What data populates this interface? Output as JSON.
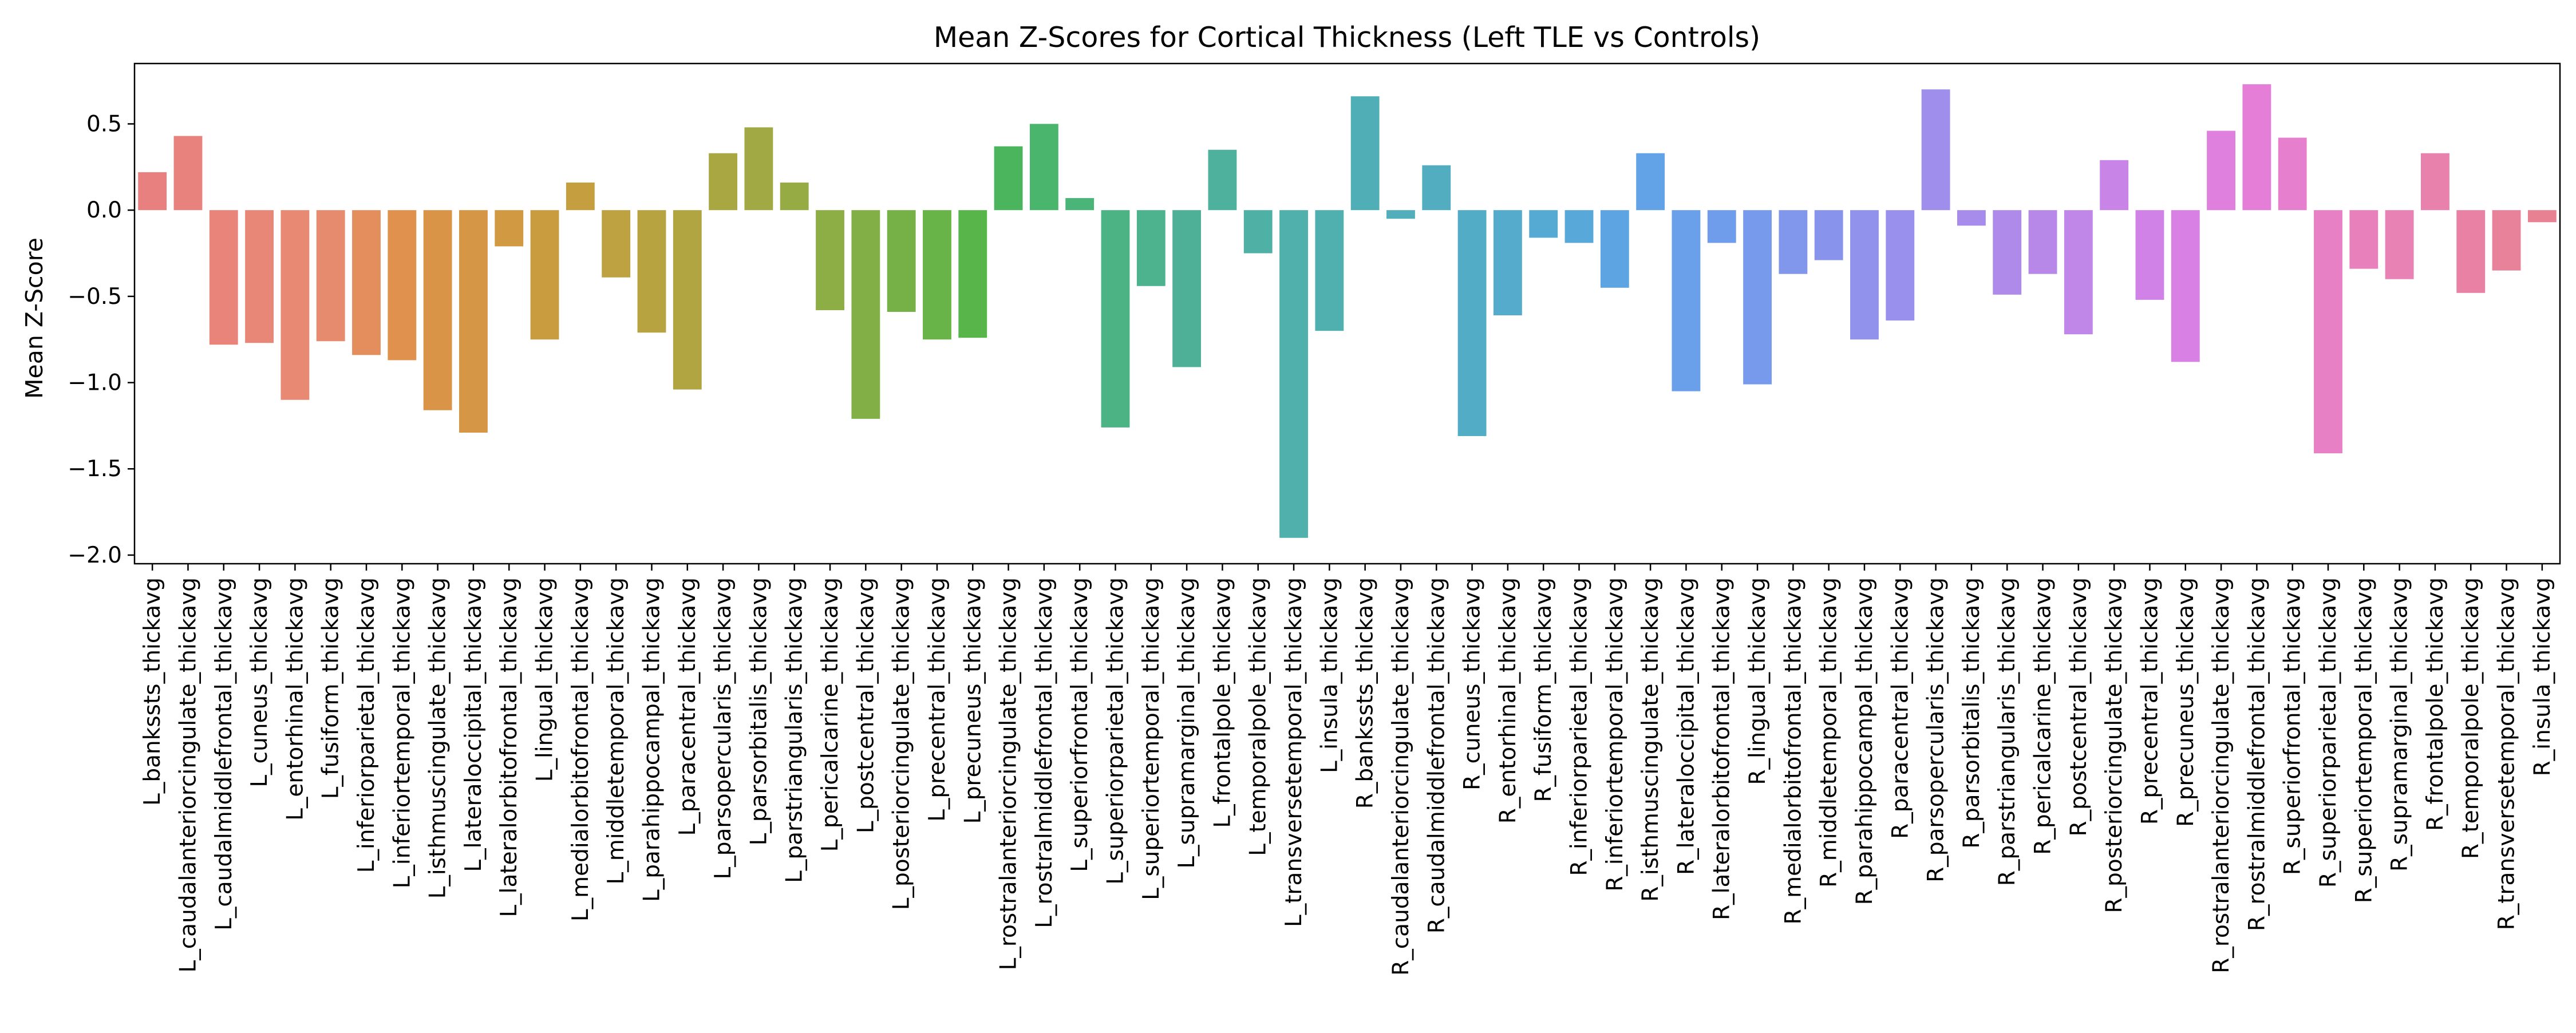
{
  "chart_data": {
    "type": "bar",
    "title": "Mean Z-Scores for Cortical Thickness (Left TLE vs Controls)",
    "xlabel": "",
    "ylabel": "Mean Z-Score",
    "ylim": [
      -2.05,
      0.85
    ],
    "yticks": [
      0.5,
      0.0,
      -0.5,
      -1.0,
      -1.5,
      -2.0
    ],
    "ytick_labels": [
      "0.5",
      "0.0",
      "−0.5",
      "−1.0",
      "−1.5",
      "−2.0"
    ],
    "grid": false,
    "legend": "none",
    "categories": [
      "L_bankssts_thickavg",
      "L_caudalanteriorcingulate_thickavg",
      "L_caudalmiddlefrontal_thickavg",
      "L_cuneus_thickavg",
      "L_entorhinal_thickavg",
      "L_fusiform_thickavg",
      "L_inferiorparietal_thickavg",
      "L_inferiortemporal_thickavg",
      "L_isthmuscingulate_thickavg",
      "L_lateraloccipital_thickavg",
      "L_lateralorbitofrontal_thickavg",
      "L_lingual_thickavg",
      "L_medialorbitofrontal_thickavg",
      "L_middletemporal_thickavg",
      "L_parahippocampal_thickavg",
      "L_paracentral_thickavg",
      "L_parsopercularis_thickavg",
      "L_parsorbitalis_thickavg",
      "L_parstriangularis_thickavg",
      "L_pericalcarine_thickavg",
      "L_postcentral_thickavg",
      "L_posteriorcingulate_thickavg",
      "L_precentral_thickavg",
      "L_precuneus_thickavg",
      "L_rostralanteriorcingulate_thickavg",
      "L_rostralmiddlefrontal_thickavg",
      "L_superiorfrontal_thickavg",
      "L_superiorparietal_thickavg",
      "L_superiortemporal_thickavg",
      "L_supramarginal_thickavg",
      "L_frontalpole_thickavg",
      "L_temporalpole_thickavg",
      "L_transversetemporal_thickavg",
      "L_insula_thickavg",
      "R_bankssts_thickavg",
      "R_caudalanteriorcingulate_thickavg",
      "R_caudalmiddlefrontal_thickavg",
      "R_cuneus_thickavg",
      "R_entorhinal_thickavg",
      "R_fusiform_thickavg",
      "R_inferiorparietal_thickavg",
      "R_inferiortemporal_thickavg",
      "R_isthmuscingulate_thickavg",
      "R_lateraloccipital_thickavg",
      "R_lateralorbitofrontal_thickavg",
      "R_lingual_thickavg",
      "R_medialorbitofrontal_thickavg",
      "R_middletemporal_thickavg",
      "R_parahippocampal_thickavg",
      "R_paracentral_thickavg",
      "R_parsopercularis_thickavg",
      "R_parsorbitalis_thickavg",
      "R_parstriangularis_thickavg",
      "R_pericalcarine_thickavg",
      "R_postcentral_thickavg",
      "R_posteriorcingulate_thickavg",
      "R_precentral_thickavg",
      "R_precuneus_thickavg",
      "R_rostralanteriorcingulate_thickavg",
      "R_rostralmiddlefrontal_thickavg",
      "R_superiorfrontal_thickavg",
      "R_superiorparietal_thickavg",
      "R_superiortemporal_thickavg",
      "R_supramarginal_thickavg",
      "R_frontalpole_thickavg",
      "R_temporalpole_thickavg",
      "R_transversetemporal_thickavg",
      "R_insula_thickavg"
    ],
    "values": [
      0.22,
      0.43,
      -0.78,
      -0.77,
      -1.1,
      -0.76,
      -0.84,
      -0.87,
      -1.16,
      -1.29,
      -0.21,
      -0.75,
      0.16,
      -0.39,
      -0.71,
      -1.04,
      0.33,
      0.48,
      0.16,
      -0.58,
      -1.21,
      -0.59,
      -0.75,
      -0.74,
      0.37,
      0.5,
      0.07,
      -1.26,
      -0.44,
      -0.91,
      0.35,
      -0.25,
      -1.9,
      -0.7,
      0.66,
      -0.05,
      0.26,
      -1.31,
      -0.61,
      -0.16,
      -0.19,
      -0.45,
      0.33,
      -1.05,
      -0.19,
      -1.01,
      -0.37,
      -0.29,
      -0.75,
      -0.64,
      0.7,
      -0.09,
      -0.49,
      -0.37,
      -0.72,
      0.29,
      -0.52,
      -0.88,
      0.46,
      0.73,
      0.42,
      -1.41,
      -0.34,
      -0.4,
      0.33,
      -0.48,
      -0.35,
      -0.07
    ],
    "colors": [
      "#e8807f",
      "#e8827c",
      "#e8847a",
      "#e88677",
      "#e88973",
      "#e78b6e",
      "#e48e5d",
      "#df914d",
      "#da9448",
      "#d59645",
      "#d09942",
      "#ca9c40",
      "#c59e40",
      "#bea140",
      "#b8a341",
      "#b0a541",
      "#a9a742",
      "#a0a943",
      "#97ab44",
      "#8dad45",
      "#82af46",
      "#76b147",
      "#68b448",
      "#58b54a",
      "#4ab55c",
      "#4ab56c",
      "#4bb479",
      "#4cb384",
      "#4db28e",
      "#4eb197",
      "#4eb19e",
      "#4fb0a5",
      "#50b0ab",
      "#50b0b0",
      "#50afb6",
      "#51aeba",
      "#52adc0",
      "#53acc6",
      "#54abcc",
      "#55aad3",
      "#58a8da",
      "#5ca5e2",
      "#62a3e7",
      "#69a0e9",
      "#709deb",
      "#789aec",
      "#8097ec",
      "#8894ec",
      "#9092ec",
      "#9890ec",
      "#a08eec",
      "#a88ceb",
      "#b08aea",
      "#b888e9",
      "#c086e8",
      "#c884e7",
      "#d082e6",
      "#d880e3",
      "#df7fde",
      "#e47ed6",
      "#e67fce",
      "#e780c5",
      "#e880bc",
      "#e881b4",
      "#e881ac",
      "#e881a4",
      "#e8819a",
      "#e88191"
    ]
  }
}
